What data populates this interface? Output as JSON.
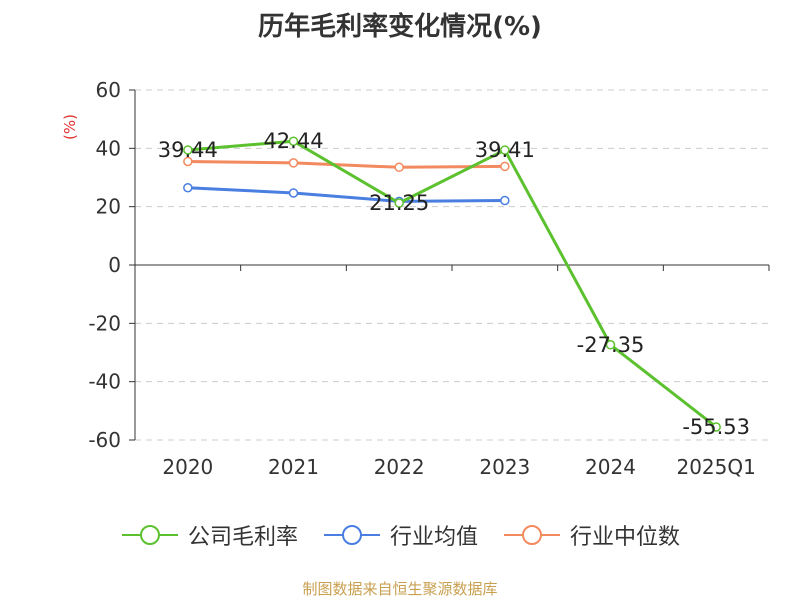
{
  "title": "历年毛利率变化情况(%)",
  "source": "制图数据来自恒生聚源数据库",
  "chart_data": {
    "type": "line",
    "ylabel": "(%)",
    "categories": [
      "2020",
      "2021",
      "2022",
      "2023",
      "2024",
      "2025Q1"
    ],
    "y_ticks": [
      "60",
      "40",
      "20",
      "0",
      "-20",
      "-40",
      "-60"
    ],
    "ylim": [
      -60,
      60
    ],
    "grid": true,
    "legend_position": "bottom",
    "series": [
      {
        "name": "公司毛利率",
        "color": "#5cc12f",
        "values": [
          39.44,
          42.44,
          21.25,
          39.41,
          -27.35,
          -55.53
        ],
        "labels": [
          "39.44",
          "42.44",
          "21.25",
          "39.41",
          "-27.35",
          "-55.53"
        ]
      },
      {
        "name": "行业均值",
        "color": "#4a7ee0",
        "values": [
          26.5,
          24.7,
          21.8,
          22.1,
          null,
          null
        ]
      },
      {
        "name": "行业中位数",
        "color": "#f38a5f",
        "values": [
          35.5,
          35.0,
          33.5,
          33.8,
          null,
          null
        ]
      }
    ]
  }
}
